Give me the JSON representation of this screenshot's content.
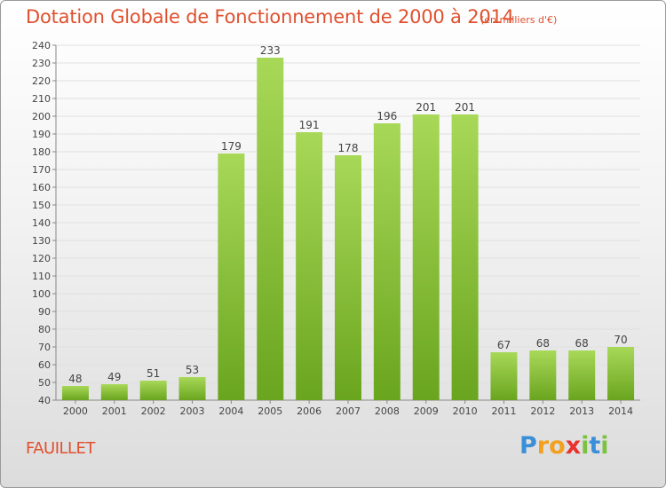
{
  "title": "Dotation Globale de Fonctionnement de 2000 à 2014",
  "subtitle": "(en milliers d'€)",
  "commune": "FAUILLET",
  "logo": {
    "letters": [
      "P",
      "r",
      "o",
      "x",
      "i",
      "t",
      "i"
    ],
    "colors": [
      "#3a8fd8",
      "#f2a01e",
      "#f2a01e",
      "#e8322e",
      "#7cc242",
      "#3a8fd8",
      "#7cc242"
    ]
  },
  "colors": {
    "bar_light": "#a8d858",
    "bar_dark": "#6aa51f",
    "title": "#e0502e"
  },
  "chart_data": {
    "type": "bar",
    "categories": [
      "2000",
      "2001",
      "2002",
      "2003",
      "2004",
      "2005",
      "2006",
      "2007",
      "2008",
      "2009",
      "2010",
      "2011",
      "2012",
      "2013",
      "2014"
    ],
    "values": [
      48,
      49,
      51,
      53,
      179,
      233,
      191,
      178,
      196,
      201,
      201,
      67,
      68,
      68,
      70
    ],
    "ylim": [
      40,
      240
    ],
    "yticks": [
      40,
      50,
      60,
      70,
      80,
      90,
      100,
      110,
      120,
      130,
      140,
      150,
      160,
      170,
      180,
      190,
      200,
      210,
      220,
      230,
      240
    ],
    "grid": true,
    "xlabel": "",
    "ylabel": ""
  }
}
